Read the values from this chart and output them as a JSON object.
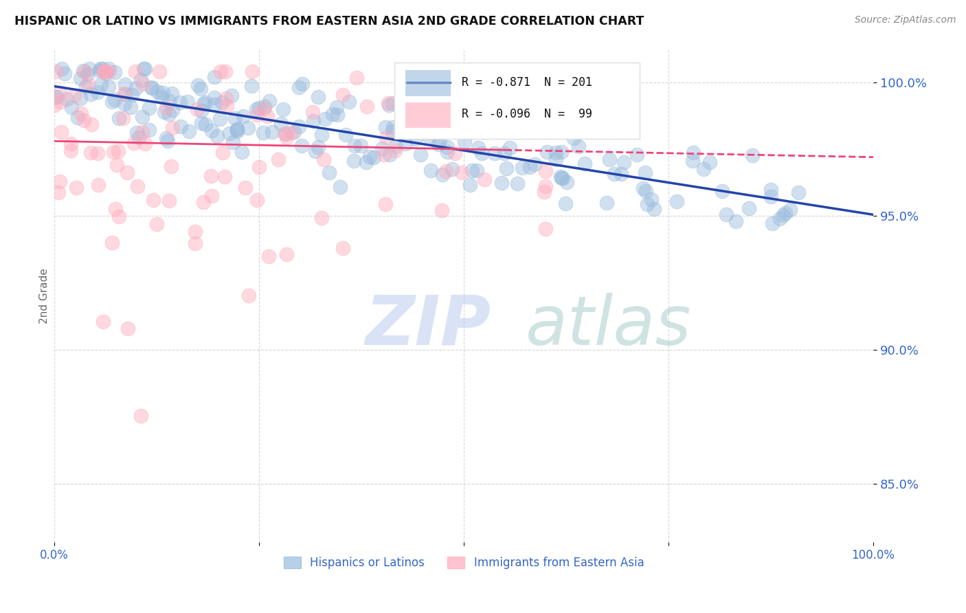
{
  "title": "HISPANIC OR LATINO VS IMMIGRANTS FROM EASTERN ASIA 2ND GRADE CORRELATION CHART",
  "source_text": "Source: ZipAtlas.com",
  "ylabel": "2nd Grade",
  "watermark_zip": "ZIP",
  "watermark_atlas": "atlas",
  "legend_blue_label": "Hispanics or Latinos",
  "legend_pink_label": "Immigrants from Eastern Asia",
  "blue_R": -0.871,
  "blue_N": 201,
  "pink_R": -0.096,
  "pink_N": 99,
  "blue_color": "#99BBDD",
  "pink_color": "#FFAABB",
  "blue_line_color": "#2244AA",
  "pink_line_color": "#EE4477",
  "watermark_zip_color": "#BBCCEE",
  "watermark_atlas_color": "#AACCCC",
  "xlim": [
    0.0,
    1.0
  ],
  "ylim": [
    0.828,
    1.012
  ],
  "yticks": [
    0.85,
    0.9,
    0.95,
    1.0
  ],
  "ytick_labels": [
    "85.0%",
    "90.0%",
    "95.0%",
    "100.0%"
  ],
  "xticks": [
    0.0,
    0.25,
    0.5,
    0.75,
    1.0
  ],
  "xtick_labels": [
    "0.0%",
    "",
    "",
    "",
    "100.0%"
  ],
  "blue_intercept": 0.9985,
  "blue_slope": -0.048,
  "pink_intercept": 0.978,
  "pink_slope": -0.006,
  "title_color": "#111111",
  "axis_color": "#3366CC",
  "grid_color": "#CCCCCC",
  "source_color": "#888888"
}
